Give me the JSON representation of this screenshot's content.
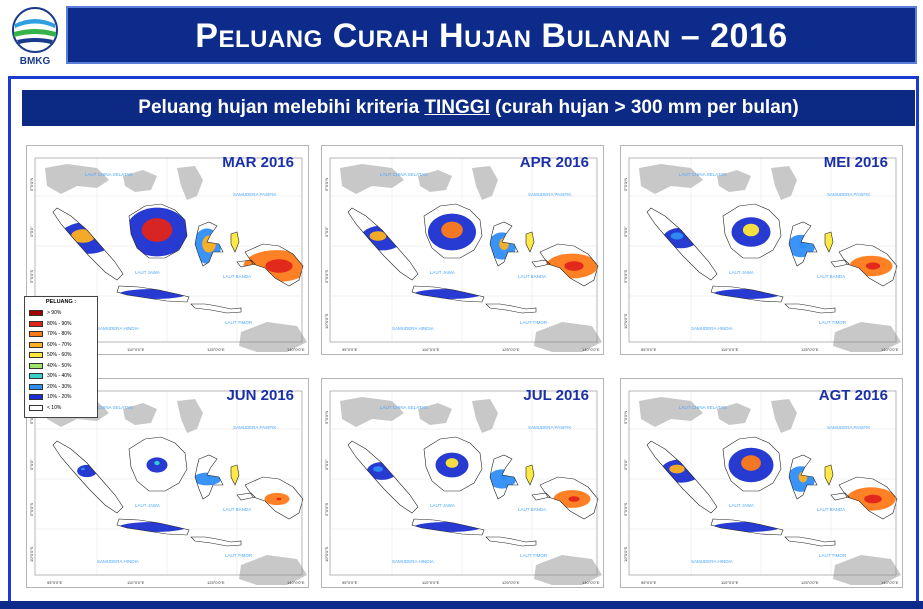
{
  "header": {
    "logo_text": "BMKG",
    "title": "Peluang Curah Hujan Bulanan – 2016"
  },
  "subtitle": {
    "prefix": "Peluang hujan melebihi kriteria ",
    "emphasis": "TINGGI",
    "suffix": " (curah hujan > 300 mm per bulan)"
  },
  "panels": [
    {
      "month": "MAR 2016",
      "intensity": 0.85
    },
    {
      "month": "APR 2016",
      "intensity": 0.6
    },
    {
      "month": "MEI 2016",
      "intensity": 0.45
    },
    {
      "month": "JUN 2016",
      "intensity": 0.15
    },
    {
      "month": "JUL 2016",
      "intensity": 0.35
    },
    {
      "month": "AGT 2016",
      "intensity": 0.55
    }
  ],
  "map_labels": {
    "sea_north": "LAUT CHINA SELATAN",
    "pacific": "SAMUDERA PASIFIK",
    "java_sea": "LAUT JAWA",
    "banda": "LAUT BANDA",
    "timor": "LAUT TIMOR",
    "indian": "SAMUDERA HINDIA"
  },
  "legend": {
    "title": "PELUANG :",
    "items": [
      {
        "label": "> 90%",
        "color": "#a50000"
      },
      {
        "label": "80% - 90%",
        "color": "#e0241a"
      },
      {
        "label": "70% - 80%",
        "color": "#ff7a1a"
      },
      {
        "label": "60% - 70%",
        "color": "#ffb020"
      },
      {
        "label": "50% - 60%",
        "color": "#ffe83a"
      },
      {
        "label": "40% - 50%",
        "color": "#9ee36a"
      },
      {
        "label": "30% - 40%",
        "color": "#35d3c9"
      },
      {
        "label": "20% - 30%",
        "color": "#2f8df5"
      },
      {
        "label": "10% - 20%",
        "color": "#1b2fd0"
      },
      {
        "label": "< 10%",
        "color": "#ffffff"
      }
    ]
  },
  "colors": {
    "header_bg": "#0d2b8a",
    "frame_border": "#1a3bd0",
    "land": "#ffffff",
    "neighbour_land": "#c8c8c8",
    "coast": "#222222"
  },
  "axis_ticks": {
    "lon": [
      "95°0'0\"E",
      "110°0'0\"E",
      "125°0'0\"E",
      "140°0'0\"E"
    ],
    "lat": [
      "5°0'0\"N",
      "0°0'0\"",
      "5°0'0\"S",
      "10°0'0\"S"
    ]
  }
}
